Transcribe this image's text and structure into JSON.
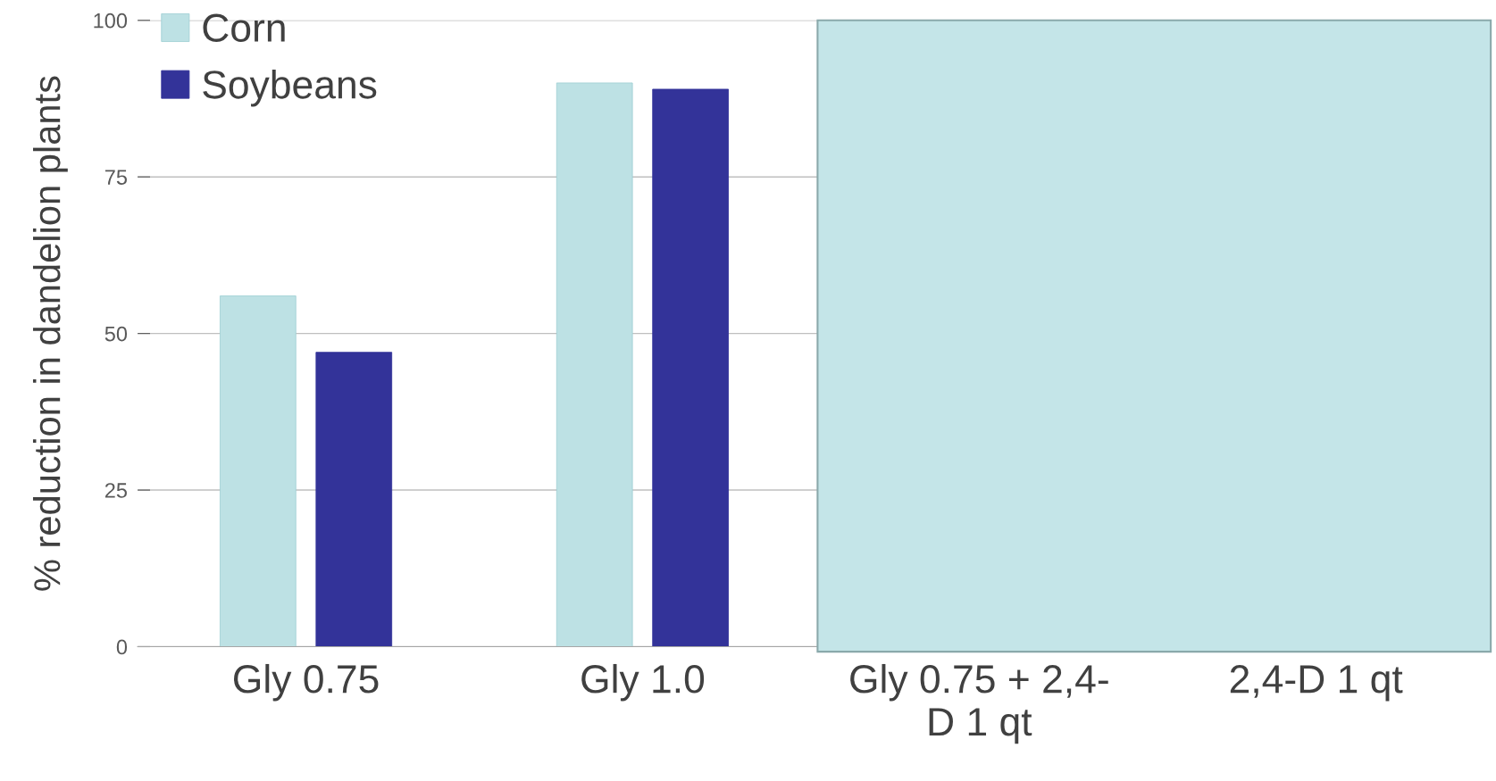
{
  "chart_data": {
    "type": "bar",
    "ylabel": "% reduction in dandelion plants",
    "categories": [
      "Gly 0.75",
      "Gly 1.0",
      "Gly 0.75 + 2,4-\nD 1 qt",
      "2,4-D 1 qt"
    ],
    "series": [
      {
        "name": "Corn",
        "color": "#bde1e4",
        "values": [
          56,
          90,
          null,
          null
        ]
      },
      {
        "name": "Soybeans",
        "color": "#333399",
        "values": [
          47,
          89,
          null,
          null
        ]
      }
    ],
    "ylim": [
      0,
      100
    ],
    "yticks": [
      0,
      25,
      50,
      75,
      100
    ],
    "grid": "y",
    "legend": "top left"
  }
}
